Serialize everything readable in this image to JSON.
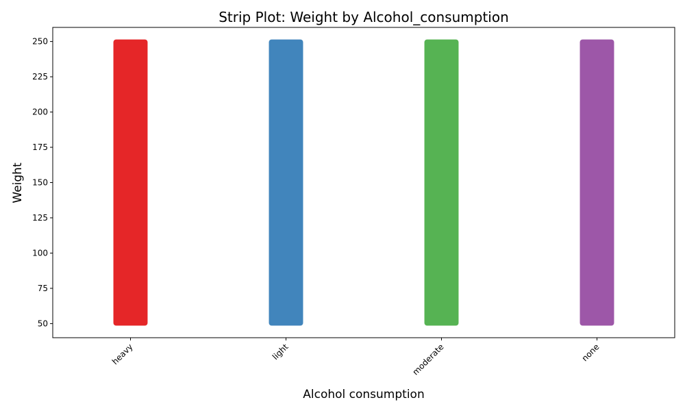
{
  "chart_data": {
    "type": "strip",
    "title": "Strip Plot: Weight by Alcohol_consumption",
    "x_label": "Alcohol consumption",
    "y_label": "Weight",
    "categories": [
      "heavy",
      "light",
      "moderate",
      "none"
    ],
    "colors": [
      "#e41a1c",
      "#377eb8",
      "#4daf4a",
      "#984ea3"
    ],
    "low": [
      50,
      50,
      50,
      50
    ],
    "high": [
      250,
      250,
      250,
      250
    ],
    "ylim": [
      40,
      260
    ],
    "yticks": [
      50,
      75,
      100,
      125,
      150,
      175,
      200,
      225,
      250
    ]
  }
}
